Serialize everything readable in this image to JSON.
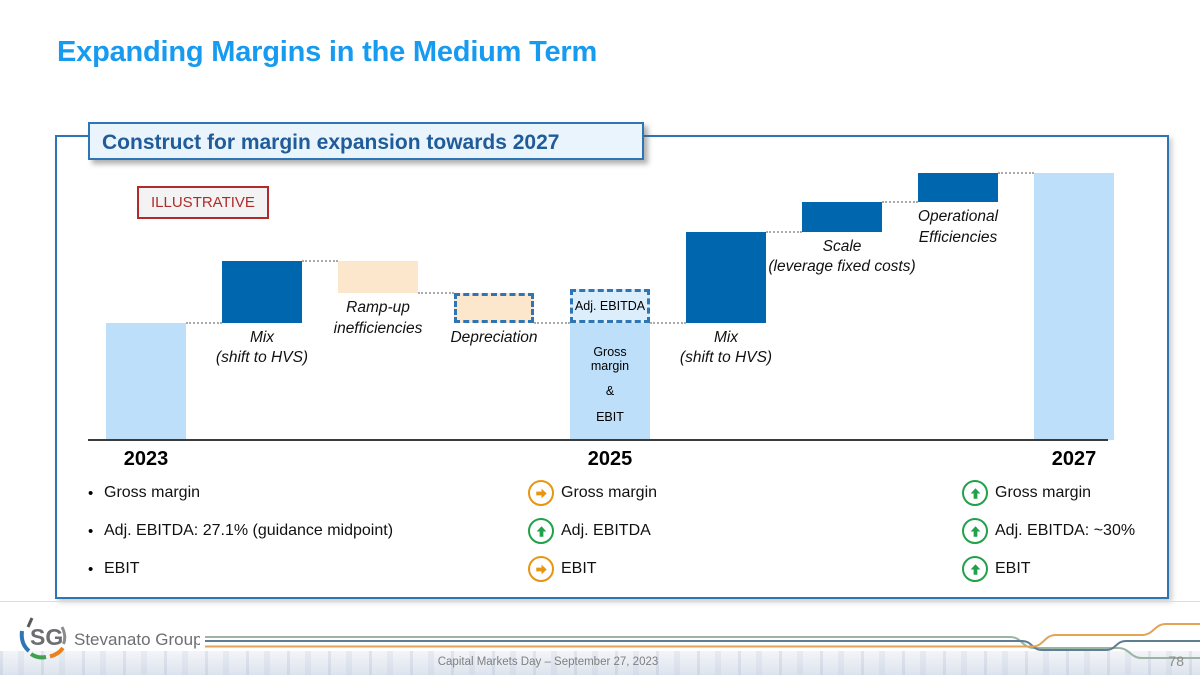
{
  "slide": {
    "title": "Expanding Margins in the Medium Term"
  },
  "panel": {
    "title": "Construct for margin expansion towards 2027",
    "tag": "ILLUSTRATIVE"
  },
  "theme": {
    "title_blue": "#169BF0",
    "panel_border_blue": "#2E75B6",
    "panel_header_text": "#1F5C99",
    "illustrative_red": "#B02B2B",
    "legend_orange": "#E8950F",
    "legend_green": "#21A149"
  },
  "chart_data": {
    "type": "waterfall",
    "title": "Construct for margin expansion towards 2027",
    "note": "Illustrative waterfall; no numeric value axis shown. Values are relative units 0-10 estimated from bar pixel heights.",
    "xlabel": "",
    "ylabel": "",
    "ylim": [
      0,
      10
    ],
    "grid": false,
    "categories": [
      "2023",
      "Mix (shift to HVS)",
      "Ramp-up inefficiencies",
      "Depreciation",
      "Adj. EBITDA / 2025",
      "Mix (shift to HVS)",
      "Scale (leverage fixed costs)",
      "Operational Efficiencies",
      "2027"
    ],
    "bars": [
      {
        "slot": 0,
        "name": "2023",
        "kind": "base",
        "from": 0,
        "to": 4.4
      },
      {
        "slot": 1,
        "name": "Mix (shift to HVS)",
        "kind": "increase",
        "from": 4.4,
        "to": 6.7,
        "label": "Mix\n(shift to HVS)"
      },
      {
        "slot": 2,
        "name": "Ramp-up inefficiencies",
        "kind": "decrease",
        "from": 6.7,
        "to": 5.5,
        "label": "Ramp-up\ninefficiencies"
      },
      {
        "slot": 3,
        "name": "Depreciation",
        "kind": "decrease-dashed",
        "from": 5.5,
        "to": 4.4,
        "label": "Depreciation"
      },
      {
        "slot": 4,
        "name": "Adj. EBITDA marker",
        "kind": "marker-dashed",
        "from": 4.4,
        "to": 5.65,
        "label": "Adj. EBITDA"
      },
      {
        "slot": 4,
        "name": "2025",
        "kind": "base",
        "from": 0,
        "to": 4.4,
        "inner_lines": [
          "Gross margin",
          "&",
          "EBIT"
        ]
      },
      {
        "slot": 5,
        "name": "Mix (shift to HVS)",
        "kind": "increase",
        "from": 4.4,
        "to": 7.8,
        "label": "Mix\n(shift to HVS)"
      },
      {
        "slot": 6,
        "name": "Scale (leverage fixed costs)",
        "kind": "increase",
        "from": 7.8,
        "to": 8.9,
        "label": "Scale\n(leverage fixed costs)"
      },
      {
        "slot": 7,
        "name": "Operational Efficiencies",
        "kind": "increase",
        "from": 8.9,
        "to": 10,
        "label": "Operational\nEfficiencies"
      },
      {
        "slot": 8,
        "name": "2027",
        "kind": "base",
        "from": 0,
        "to": 10
      }
    ],
    "connectors": [
      {
        "from_slot": 0,
        "to_slot": 1,
        "level": 4.4
      },
      {
        "from_slot": 1,
        "to_slot": 2,
        "level": 6.7
      },
      {
        "from_slot": 2,
        "to_slot": 3,
        "level": 5.5
      },
      {
        "from_slot": 3,
        "to_slot": 4,
        "level": 4.4
      },
      {
        "from_slot": 4,
        "to_slot": 5,
        "level": 4.4
      },
      {
        "from_slot": 5,
        "to_slot": 6,
        "level": 7.8
      },
      {
        "from_slot": 6,
        "to_slot": 7,
        "level": 8.9
      },
      {
        "from_slot": 7,
        "to_slot": 8,
        "level": 10
      }
    ],
    "colors": {
      "base": "#BDDFFA",
      "increase": "#0066AE",
      "decrease": "#FCE6CC",
      "dashed_border": "#2E75B6",
      "marker_fill": "#DCEEFB",
      "connector": "#ABABAB",
      "axis": "#3A3A3A"
    }
  },
  "legend_columns": [
    {
      "year": "2023",
      "slot": 0,
      "items": [
        {
          "icon": "bullet",
          "label": "Gross margin"
        },
        {
          "icon": "bullet",
          "label": "Adj. EBITDA: 27.1% (guidance midpoint)"
        },
        {
          "icon": "bullet",
          "label": "EBIT"
        }
      ]
    },
    {
      "year": "2025",
      "slot": 4,
      "items": [
        {
          "icon": "arrow-right-orange",
          "label": "Gross margin"
        },
        {
          "icon": "arrow-up-green",
          "label": "Adj. EBITDA"
        },
        {
          "icon": "arrow-right-orange",
          "label": "EBIT"
        }
      ]
    },
    {
      "year": "2027",
      "slot": 8,
      "items": [
        {
          "icon": "arrow-up-green",
          "label": "Gross margin"
        },
        {
          "icon": "arrow-up-green",
          "label": "Adj. EBITDA: ~30%"
        },
        {
          "icon": "arrow-up-green",
          "label": "EBIT"
        }
      ]
    }
  ],
  "footer": {
    "logo_monogram": "SG",
    "brand": "Stevanato Group",
    "caption": "Capital Markets Day – September 27, 2023",
    "page_number": "78",
    "accent_colors": {
      "green": "#9BB5A4",
      "blue": "#5E7F91",
      "orange": "#E2A455"
    }
  }
}
